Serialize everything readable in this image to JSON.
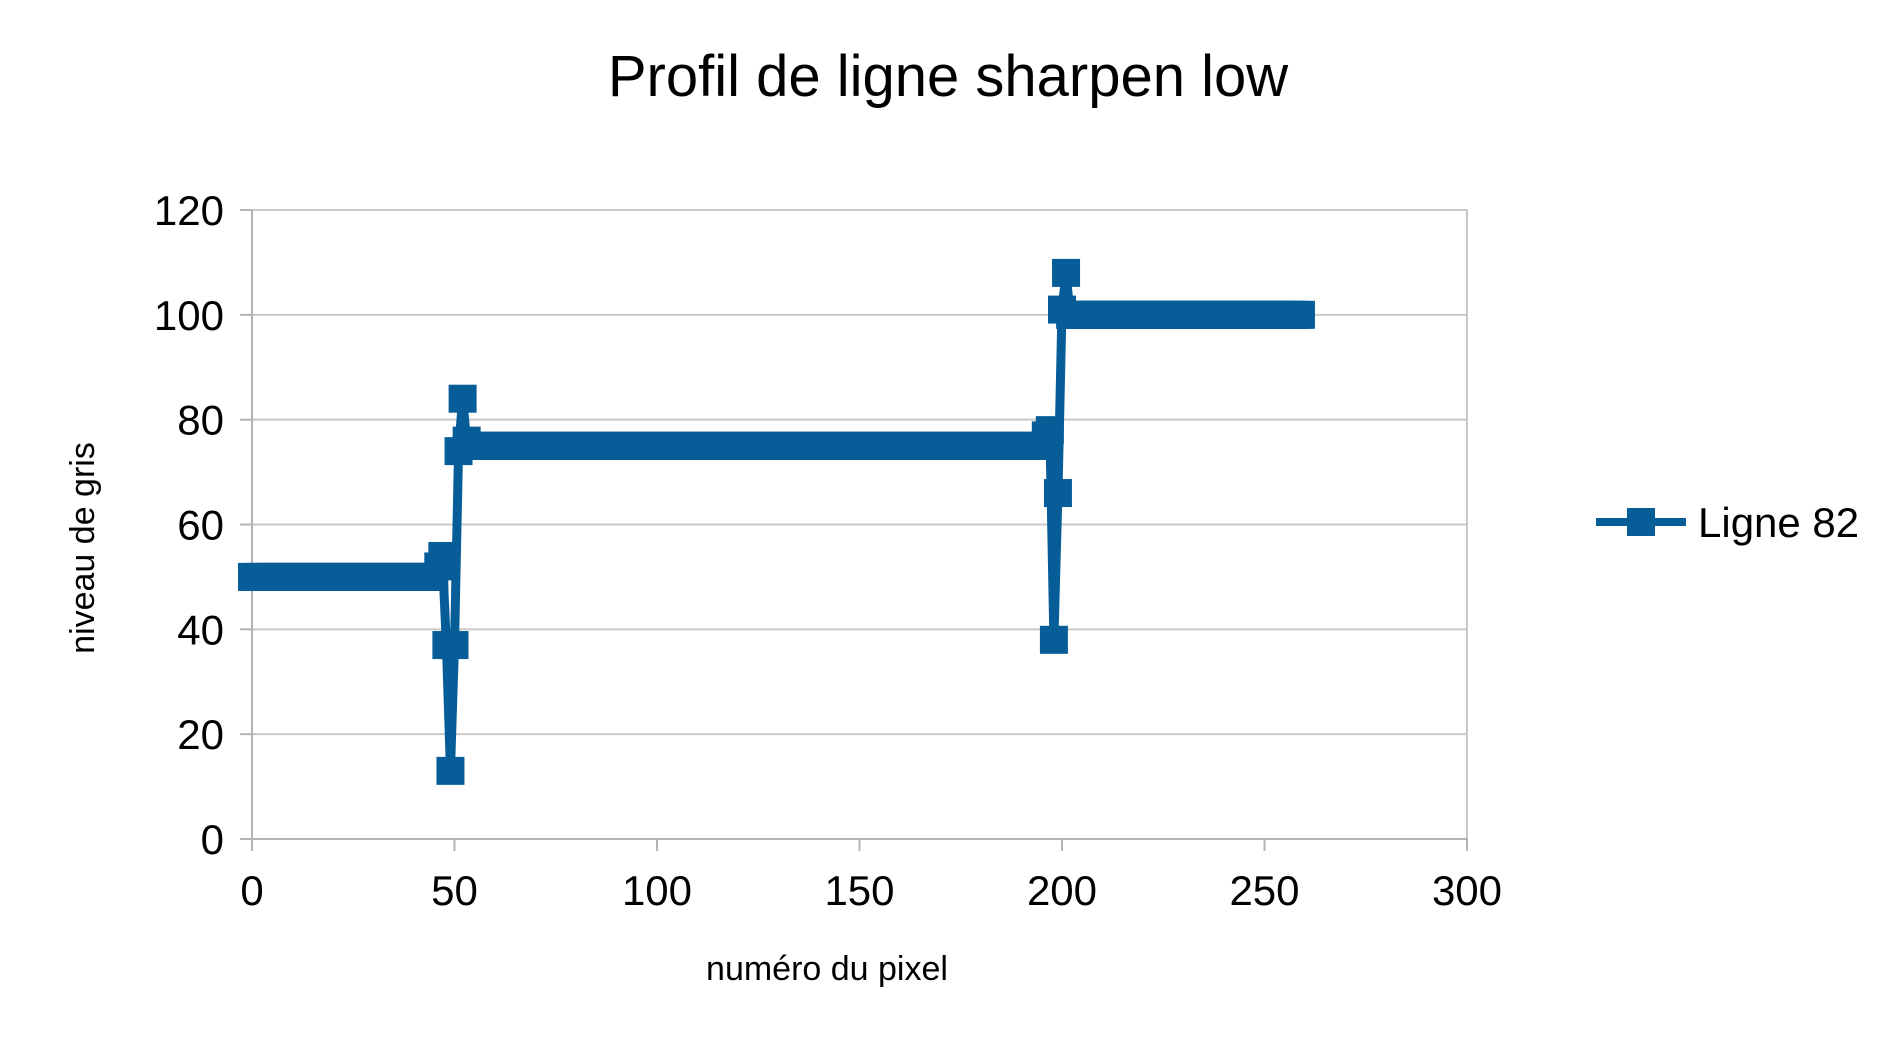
{
  "chart_data": {
    "type": "line",
    "title": "Profil de ligne sharpen low",
    "xlabel": "numéro du pixel",
    "ylabel": "niveau de gris",
    "xlim": [
      0,
      300
    ],
    "ylim": [
      0,
      120
    ],
    "x_ticks": [
      0,
      50,
      100,
      150,
      200,
      250,
      300
    ],
    "y_ticks": [
      0,
      20,
      40,
      60,
      80,
      100,
      120
    ],
    "x_tick_labels": [
      "0",
      "50",
      "100",
      "150",
      "200",
      "250",
      "300"
    ],
    "y_tick_labels": [
      "0",
      "20",
      "40",
      "60",
      "80",
      "100",
      "120"
    ],
    "grid": "horizontal",
    "legend_position": "right",
    "marker": "square",
    "colors": {
      "series": "#065d97",
      "grid": "#c8c8c8",
      "axis": "#b3b3b3"
    },
    "series": [
      {
        "name": "Ligne 82",
        "x": [
          0,
          1,
          2,
          3,
          4,
          5,
          6,
          7,
          8,
          9,
          10,
          11,
          12,
          13,
          14,
          15,
          16,
          17,
          18,
          19,
          20,
          21,
          22,
          23,
          24,
          25,
          26,
          27,
          28,
          29,
          30,
          31,
          32,
          33,
          34,
          35,
          36,
          37,
          38,
          39,
          40,
          41,
          42,
          43,
          44,
          45,
          46,
          47,
          48,
          49,
          50,
          51,
          52,
          53,
          54,
          55,
          56,
          57,
          58,
          59,
          60,
          61,
          62,
          63,
          64,
          65,
          66,
          67,
          68,
          69,
          70,
          71,
          72,
          73,
          74,
          75,
          76,
          77,
          78,
          79,
          80,
          81,
          82,
          83,
          84,
          85,
          86,
          87,
          88,
          89,
          90,
          91,
          92,
          93,
          94,
          95,
          96,
          97,
          98,
          99,
          100,
          101,
          102,
          103,
          104,
          105,
          106,
          107,
          108,
          109,
          110,
          111,
          112,
          113,
          114,
          115,
          116,
          117,
          118,
          119,
          120,
          121,
          122,
          123,
          124,
          125,
          126,
          127,
          128,
          129,
          130,
          131,
          132,
          133,
          134,
          135,
          136,
          137,
          138,
          139,
          140,
          141,
          142,
          143,
          144,
          145,
          146,
          147,
          148,
          149,
          150,
          151,
          152,
          153,
          154,
          155,
          156,
          157,
          158,
          159,
          160,
          161,
          162,
          163,
          164,
          165,
          166,
          167,
          168,
          169,
          170,
          171,
          172,
          173,
          174,
          175,
          176,
          177,
          178,
          179,
          180,
          181,
          182,
          183,
          184,
          185,
          186,
          187,
          188,
          189,
          190,
          191,
          192,
          193,
          194,
          195,
          196,
          197,
          198,
          199,
          200,
          201,
          202,
          203,
          204,
          205,
          206,
          207,
          208,
          209,
          210,
          211,
          212,
          213,
          214,
          215,
          216,
          217,
          218,
          219,
          220,
          221,
          222,
          223,
          224,
          225,
          226,
          227,
          228,
          229,
          230,
          231,
          232,
          233,
          234,
          235,
          236,
          237,
          238,
          239,
          240,
          241,
          242,
          243,
          244,
          245,
          246,
          247,
          248,
          249,
          250,
          251,
          252,
          253,
          254,
          255,
          256,
          257,
          258,
          259
        ],
        "values": [
          50,
          50,
          50,
          50,
          50,
          50,
          50,
          50,
          50,
          50,
          50,
          50,
          50,
          50,
          50,
          50,
          50,
          50,
          50,
          50,
          50,
          50,
          50,
          50,
          50,
          50,
          50,
          50,
          50,
          50,
          50,
          50,
          50,
          50,
          50,
          50,
          50,
          50,
          50,
          50,
          50,
          50,
          50,
          50,
          50,
          50,
          52,
          54,
          37,
          13,
          37,
          74,
          84,
          76,
          75,
          75,
          75,
          75,
          75,
          75,
          75,
          75,
          75,
          75,
          75,
          75,
          75,
          75,
          75,
          75,
          75,
          75,
          75,
          75,
          75,
          75,
          75,
          75,
          75,
          75,
          75,
          75,
          75,
          75,
          75,
          75,
          75,
          75,
          75,
          75,
          75,
          75,
          75,
          75,
          75,
          75,
          75,
          75,
          75,
          75,
          75,
          75,
          75,
          75,
          75,
          75,
          75,
          75,
          75,
          75,
          75,
          75,
          75,
          75,
          75,
          75,
          75,
          75,
          75,
          75,
          75,
          75,
          75,
          75,
          75,
          75,
          75,
          75,
          75,
          75,
          75,
          75,
          75,
          75,
          75,
          75,
          75,
          75,
          75,
          75,
          75,
          75,
          75,
          75,
          75,
          75,
          75,
          75,
          75,
          75,
          75,
          75,
          75,
          75,
          75,
          75,
          75,
          75,
          75,
          75,
          75,
          75,
          75,
          75,
          75,
          75,
          75,
          75,
          75,
          75,
          75,
          75,
          75,
          75,
          75,
          75,
          75,
          75,
          75,
          75,
          75,
          75,
          75,
          75,
          75,
          75,
          75,
          75,
          75,
          75,
          75,
          75,
          75,
          75,
          75,
          75,
          77,
          78,
          38,
          66,
          101,
          108,
          100,
          100,
          100,
          100,
          100,
          100,
          100,
          100,
          100,
          100,
          100,
          100,
          100,
          100,
          100,
          100,
          100,
          100,
          100,
          100,
          100,
          100,
          100,
          100,
          100,
          100,
          100,
          100,
          100,
          100,
          100,
          100,
          100,
          100,
          100,
          100,
          100,
          100,
          100,
          100,
          100,
          100,
          100,
          100,
          100,
          100,
          100,
          100,
          100,
          100,
          100,
          100,
          100,
          100,
          100,
          100,
          100,
          100
        ]
      }
    ]
  }
}
